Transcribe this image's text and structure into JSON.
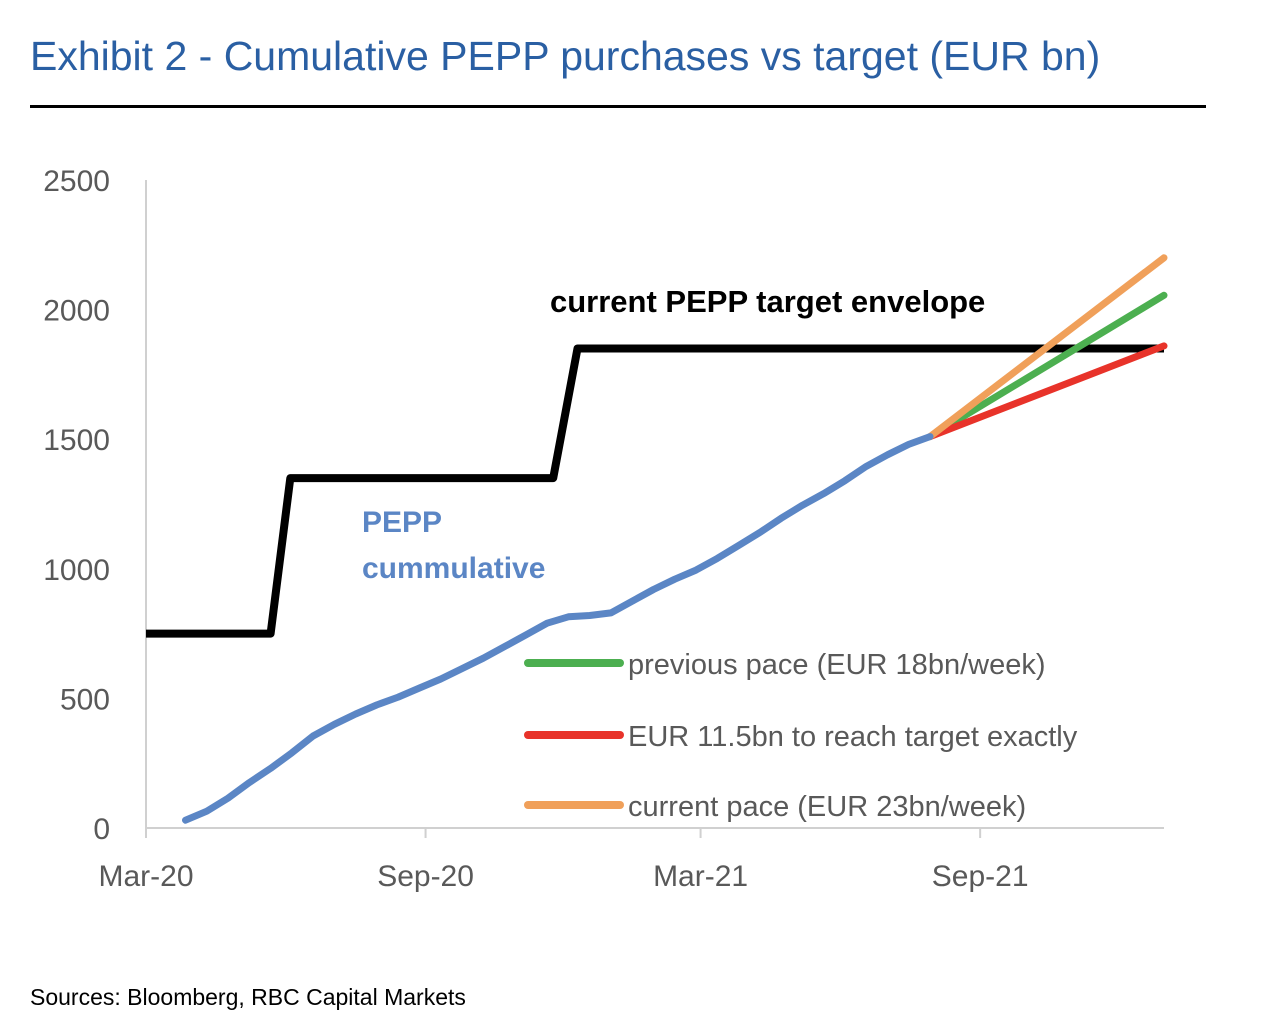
{
  "source": "Sources: Bloomberg, RBC Capital Markets",
  "chart_data": {
    "type": "line",
    "title": "Exhibit 2 - Cumulative PEPP purchases vs target (EUR bn)",
    "xlabel": "",
    "ylabel": "",
    "ylim": [
      0,
      2500
    ],
    "yticks": [
      0,
      500,
      1000,
      1500,
      2000,
      2500
    ],
    "xlim": [
      "2020-03-01",
      "2021-12-31"
    ],
    "xticks": [
      {
        "date": "2020-03-01",
        "label": "Mar-20"
      },
      {
        "date": "2020-09-01",
        "label": "Sep-20"
      },
      {
        "date": "2021-03-01",
        "label": "Mar-21"
      },
      {
        "date": "2021-09-01",
        "label": "Sep-21"
      }
    ],
    "grid": false,
    "legend": "bottom-right",
    "annotations": [
      {
        "text": "current PEPP target envelope",
        "color": "#000000"
      },
      {
        "text": "PEPP",
        "color": "#5b86c5"
      },
      {
        "text": "cummulative",
        "color": "#5b86c5"
      }
    ],
    "series": [
      {
        "name": "current PEPP target envelope",
        "color": "#000000",
        "in_legend": false,
        "step": true,
        "points": [
          [
            "2020-03-01",
            750
          ],
          [
            "2020-05-22",
            750
          ],
          [
            "2020-06-04",
            1350
          ],
          [
            "2020-11-24",
            1350
          ],
          [
            "2020-12-10",
            1850
          ],
          [
            "2021-12-31",
            1850
          ]
        ]
      },
      {
        "name": "PEPP cummulative",
        "color": "#5b86c5",
        "in_legend": false,
        "points": [
          [
            "2020-03-27",
            30
          ],
          [
            "2020-04-10",
            65
          ],
          [
            "2020-04-24",
            115
          ],
          [
            "2020-05-08",
            175
          ],
          [
            "2020-05-22",
            230
          ],
          [
            "2020-06-05",
            290
          ],
          [
            "2020-06-19",
            355
          ],
          [
            "2020-07-03",
            400
          ],
          [
            "2020-07-17",
            440
          ],
          [
            "2020-07-31",
            475
          ],
          [
            "2020-08-14",
            505
          ],
          [
            "2020-08-28",
            540
          ],
          [
            "2020-09-11",
            575
          ],
          [
            "2020-09-25",
            615
          ],
          [
            "2020-10-09",
            655
          ],
          [
            "2020-10-23",
            700
          ],
          [
            "2020-11-06",
            745
          ],
          [
            "2020-11-20",
            790
          ],
          [
            "2020-12-04",
            815
          ],
          [
            "2020-12-18",
            820
          ],
          [
            "2021-01-01",
            830
          ],
          [
            "2021-01-15",
            875
          ],
          [
            "2021-01-29",
            920
          ],
          [
            "2021-02-12",
            960
          ],
          [
            "2021-02-26",
            995
          ],
          [
            "2021-03-12",
            1040
          ],
          [
            "2021-03-26",
            1090
          ],
          [
            "2021-04-09",
            1140
          ],
          [
            "2021-04-23",
            1195
          ],
          [
            "2021-05-07",
            1245
          ],
          [
            "2021-05-21",
            1290
          ],
          [
            "2021-06-04",
            1340
          ],
          [
            "2021-06-18",
            1395
          ],
          [
            "2021-07-02",
            1440
          ],
          [
            "2021-07-16",
            1480
          ],
          [
            "2021-07-30",
            1510
          ]
        ]
      },
      {
        "name": "previous pace (EUR 18bn/week)",
        "color": "#4caf50",
        "in_legend": true,
        "points": [
          [
            "2021-07-30",
            1510
          ],
          [
            "2021-12-31",
            2055
          ]
        ]
      },
      {
        "name": "EUR 11.5bn to reach target exactly",
        "color": "#e8332a",
        "in_legend": true,
        "points": [
          [
            "2021-07-30",
            1510
          ],
          [
            "2021-12-31",
            1860
          ]
        ]
      },
      {
        "name": "current pace (EUR 23bn/week)",
        "color": "#f0a05a",
        "in_legend": true,
        "points": [
          [
            "2021-07-30",
            1510
          ],
          [
            "2021-12-31",
            2200
          ]
        ]
      }
    ]
  }
}
